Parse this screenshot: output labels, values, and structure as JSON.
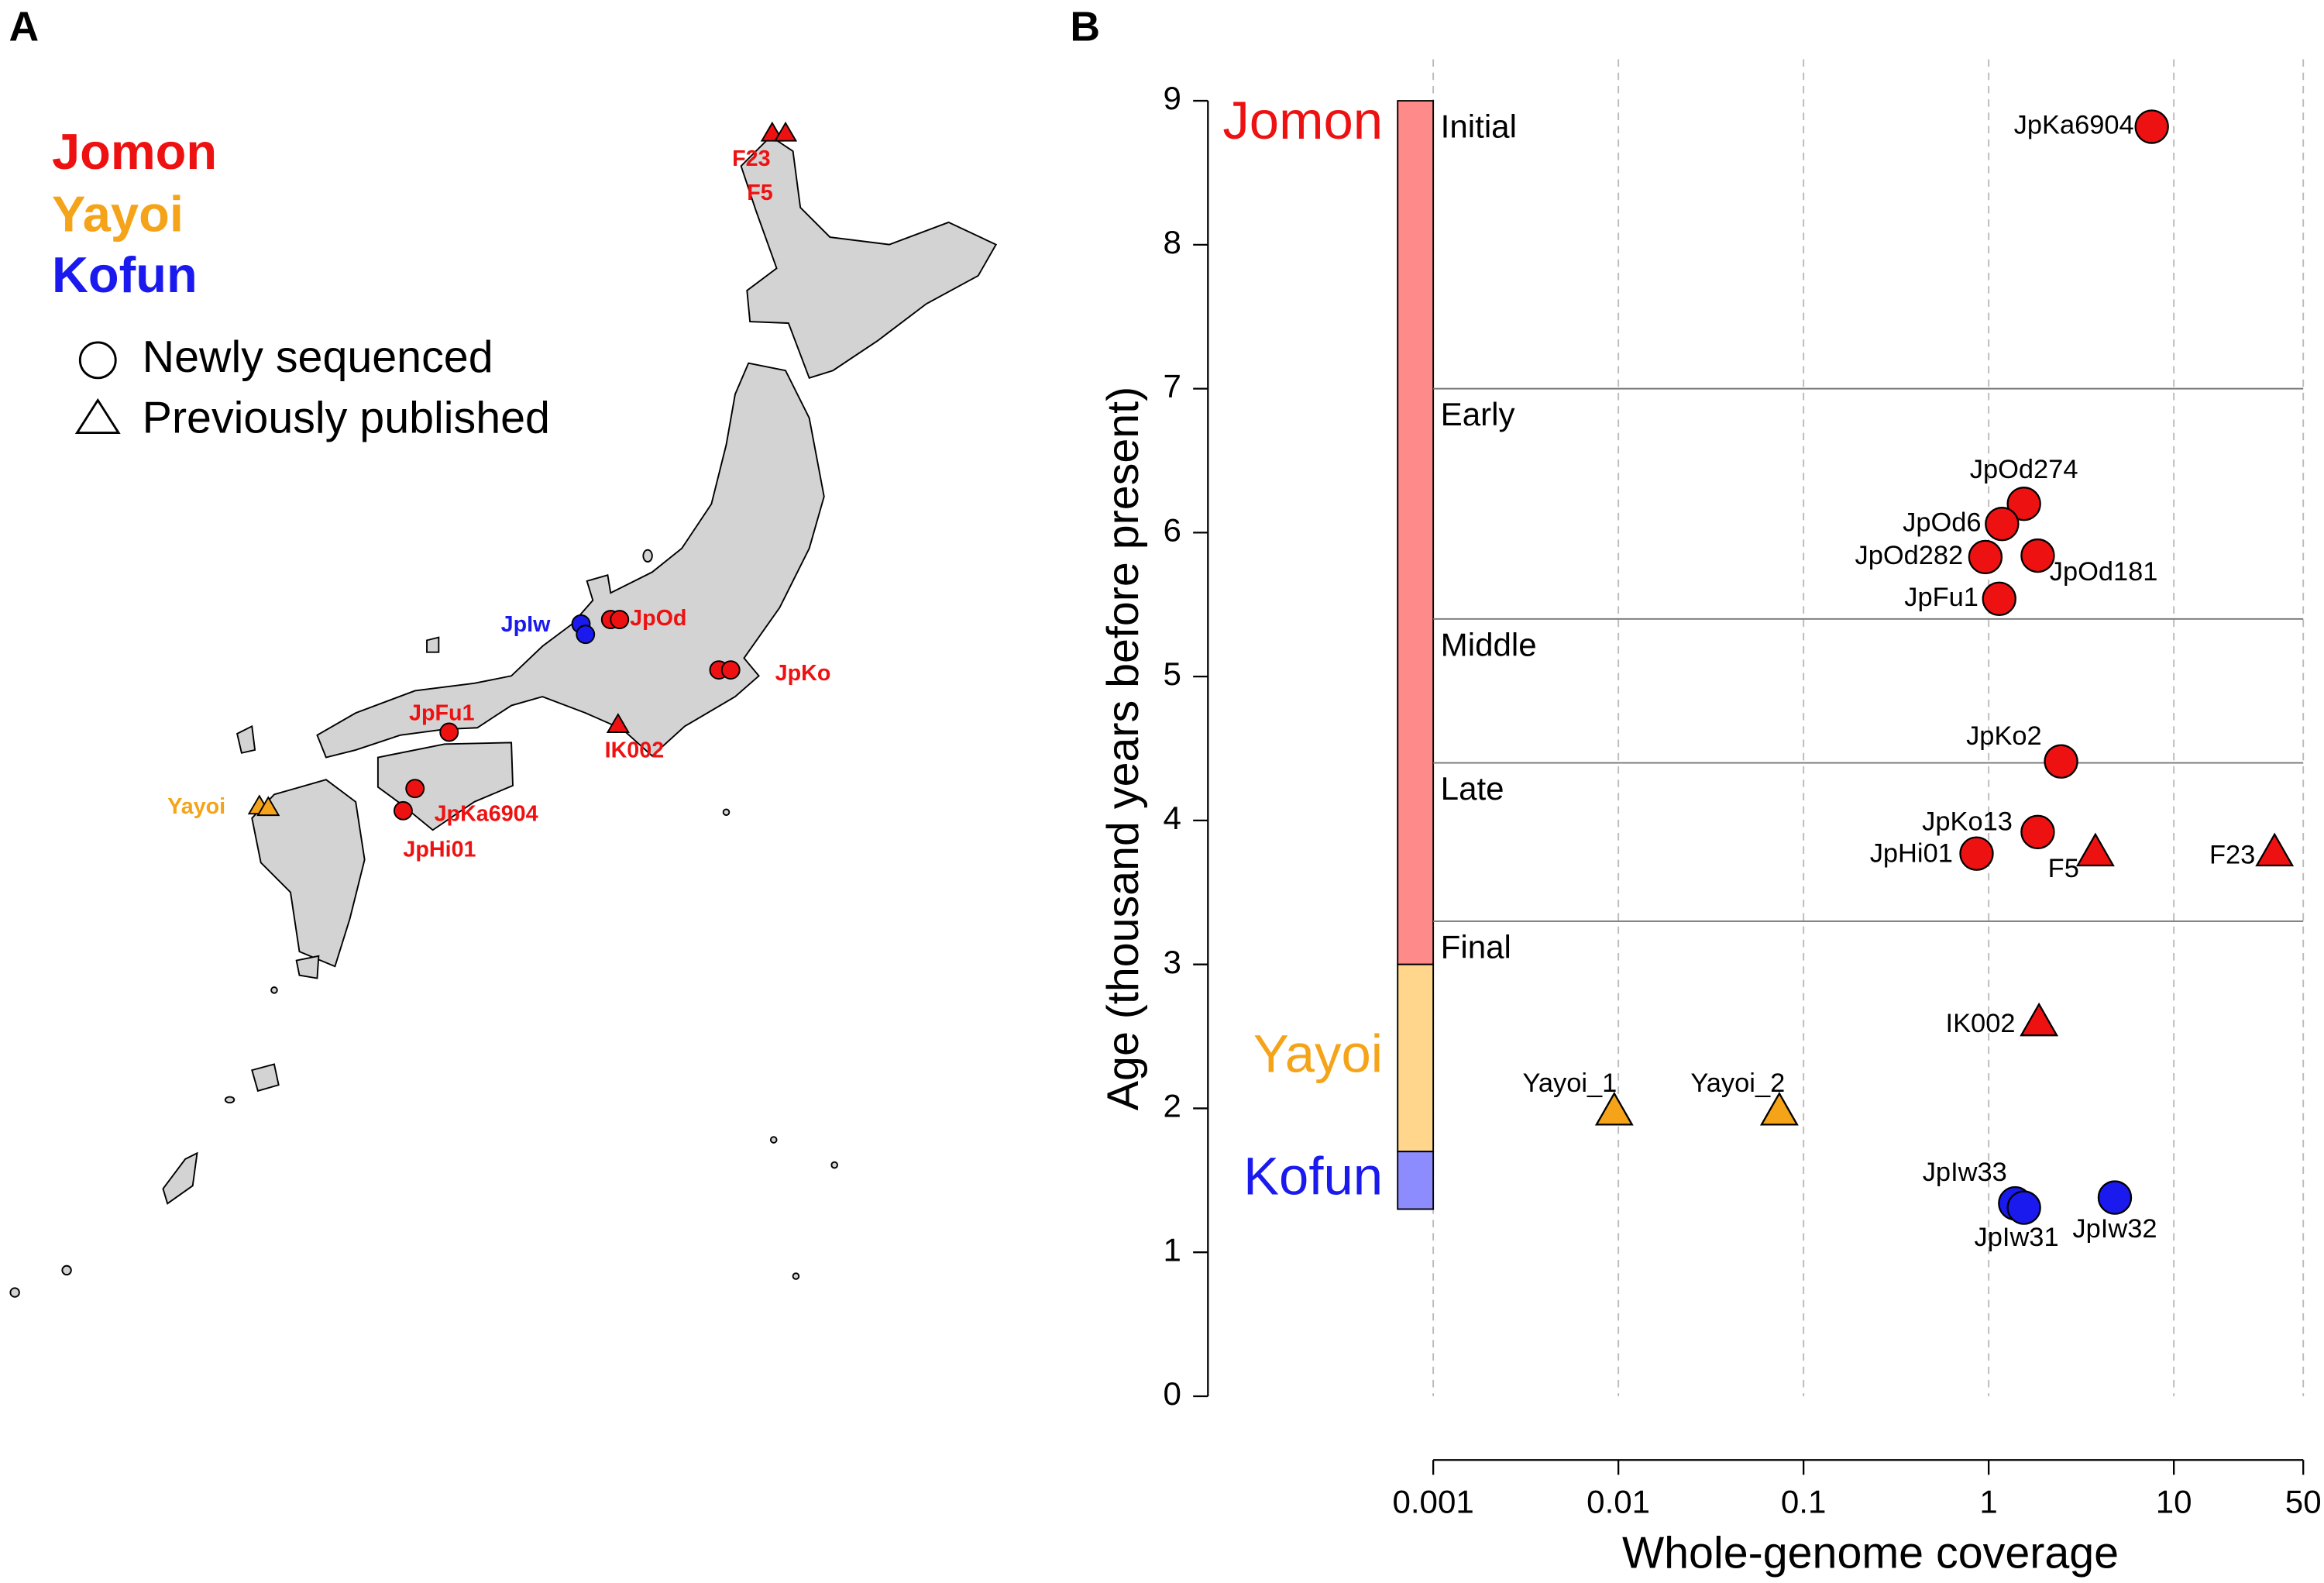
{
  "panel_labels": [
    "A",
    "B"
  ],
  "map": {
    "legend": {
      "periods": [
        "Jomon",
        "Yayoi",
        "Kofun"
      ],
      "shapes": [
        "Newly sequenced",
        "Previously published"
      ]
    },
    "sites": [
      "JpIw",
      "JpOd",
      "JpKo",
      "IK002",
      "JpFu1",
      "JpKa6904",
      "JpHi01",
      "Yayoi",
      "F23",
      "F5"
    ]
  },
  "chart_data": {
    "type": "scatter",
    "xlabel": "Whole-genome coverage",
    "ylabel": "Age (thousand years before present)",
    "xscale": "log",
    "xlim": [
      0.001,
      50
    ],
    "xticks": [
      0.001,
      0.01,
      0.1,
      1,
      10,
      50
    ],
    "ylim": [
      0,
      9
    ],
    "yticks": [
      0,
      1,
      2,
      3,
      4,
      5,
      6,
      7,
      8,
      9
    ],
    "grid": "x",
    "periods": [
      {
        "name": "Jomon",
        "start": 9,
        "end": 3,
        "color": "#ff8a8a",
        "label_color": "#ee1111"
      },
      {
        "name": "Yayoi",
        "start": 3,
        "end": 1.7,
        "color": "#ffd68c",
        "label_color": "#f5a318"
      },
      {
        "name": "Kofun",
        "start": 1.7,
        "end": 1.3,
        "color": "#8c8cff",
        "label_color": "#1a1aee"
      }
    ],
    "subperiods": [
      {
        "name": "Initial",
        "start": 9
      },
      {
        "name": "Early",
        "start": 7
      },
      {
        "name": "Middle",
        "start": 5.4
      },
      {
        "name": "Late",
        "start": 4.4
      },
      {
        "name": "Final",
        "start": 3.3
      }
    ],
    "series": [
      {
        "color": "#ee1111",
        "marker": "circle",
        "labels": [
          "JpKa6904",
          "JpOd274",
          "JpOd6",
          "JpOd282",
          "JpOd181",
          "JpFu1",
          "JpKo2",
          "JpKo13",
          "JpHi01"
        ],
        "x": [
          7.6,
          1.55,
          1.18,
          0.96,
          1.84,
          1.14,
          2.46,
          1.84,
          0.86
        ],
        "values": [
          8.82,
          6.2,
          6.06,
          5.83,
          5.84,
          5.54,
          4.41,
          3.92,
          3.77
        ]
      },
      {
        "color": "#ee1111",
        "marker": "triangle",
        "labels": [
          "F5",
          "F23",
          "IK002"
        ],
        "x": [
          3.77,
          35,
          1.87
        ],
        "values": [
          3.78,
          3.78,
          2.6
        ]
      },
      {
        "color": "#f5a318",
        "marker": "triangle",
        "labels": [
          "Yayoi_1",
          "Yayoi_2"
        ],
        "x": [
          0.0095,
          0.074
        ],
        "values": [
          1.98,
          1.98
        ]
      },
      {
        "color": "#1a1aee",
        "marker": "circle",
        "labels": [
          "JpIw33",
          "JpIw31",
          "JpIw32"
        ],
        "x": [
          1.39,
          1.55,
          4.8
        ],
        "values": [
          1.34,
          1.31,
          1.38
        ]
      }
    ]
  }
}
